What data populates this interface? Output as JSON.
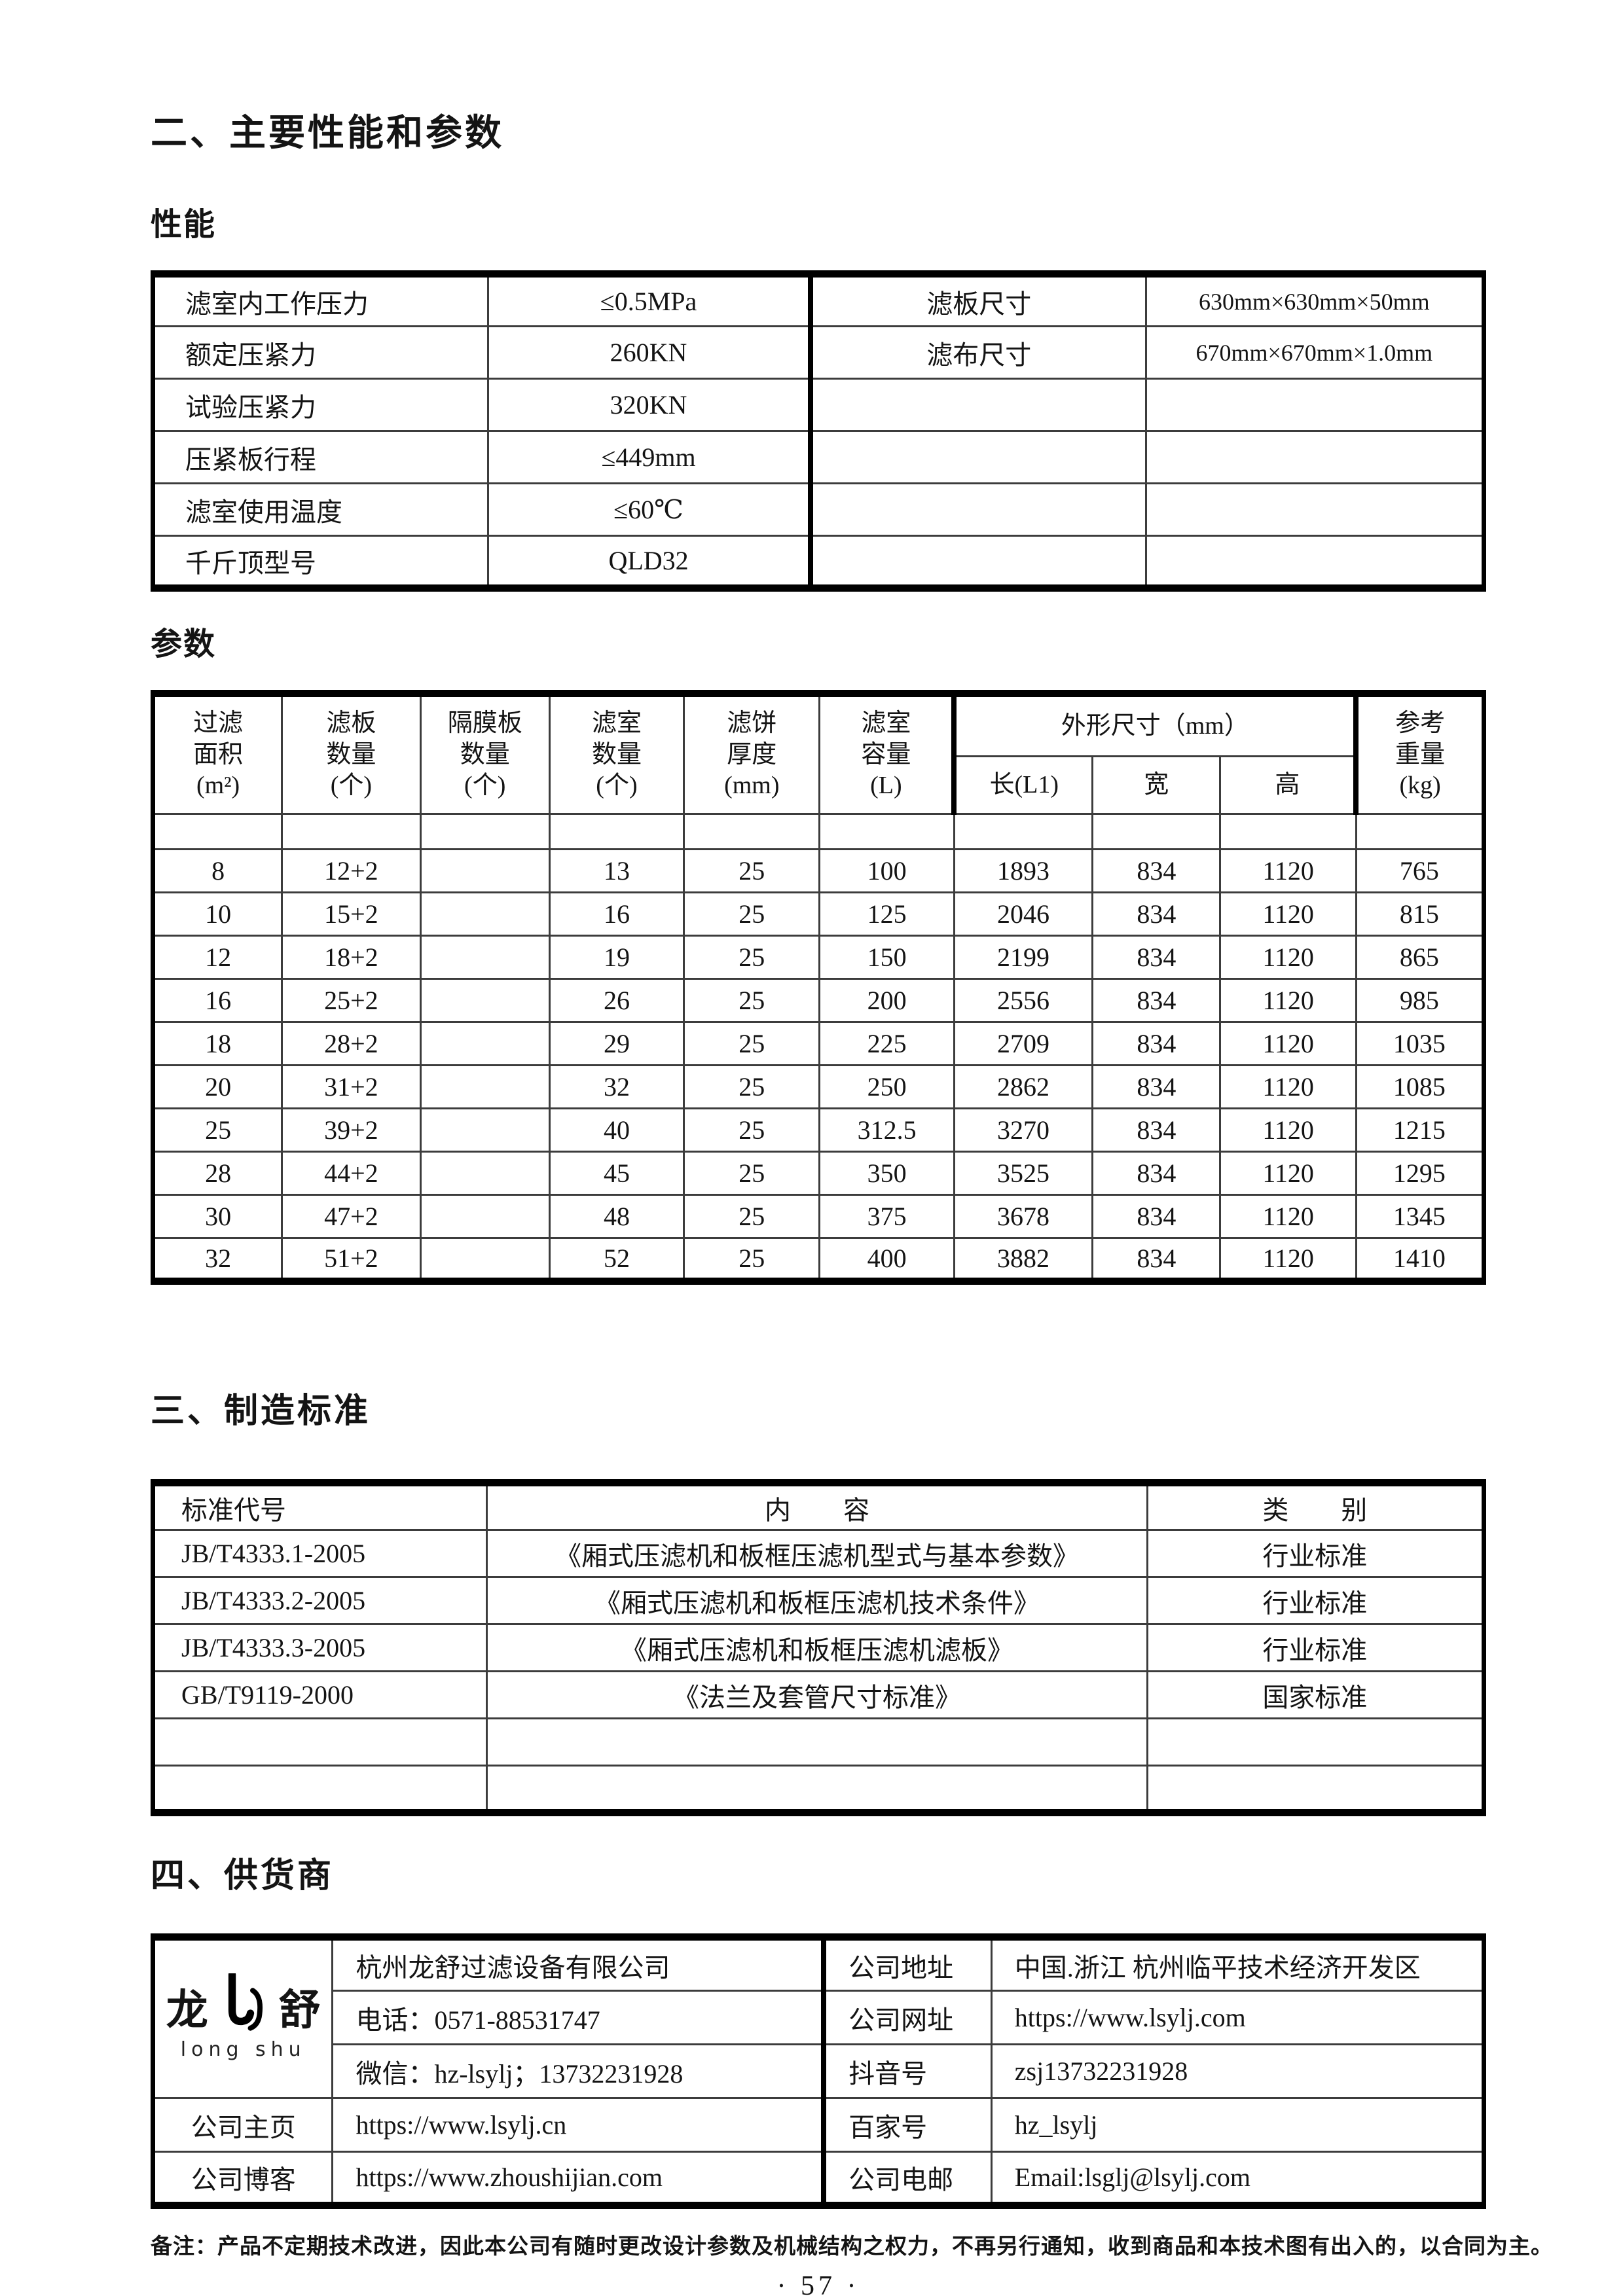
{
  "page": {
    "section2_title": "二、主要性能和参数",
    "performance_title": "性能",
    "params_title": "参数",
    "section3_title": "三、制造标准",
    "section4_title": "四、供货商",
    "footer_note": "备注：产品不定期技术改进，因此本公司有随时更改设计参数及机械结构之权力，不再另行通知，收到商品和本技术图有出入的，以合同为主。",
    "page_number": "· 57 ·"
  },
  "performance_table": {
    "rows": [
      [
        "滤室内工作压力",
        "≤0.5MPa",
        "滤板尺寸",
        "630mm×630mm×50mm"
      ],
      [
        "额定压紧力",
        "260KN",
        "滤布尺寸",
        "670mm×670mm×1.0mm"
      ],
      [
        "试验压紧力",
        "320KN",
        "",
        ""
      ],
      [
        "压紧板行程",
        "≤449mm",
        "",
        ""
      ],
      [
        "滤室使用温度",
        "≤60℃",
        "",
        ""
      ],
      [
        "千斤顶型号",
        "QLD32",
        "",
        ""
      ]
    ]
  },
  "parameter_table": {
    "headers": {
      "filter_area": "过滤\n面积\n(m²)",
      "plate_count": "滤板\n数量\n(个)",
      "diaphragm_count": "隔膜板\n数量\n(个)",
      "chamber_count": "滤室\n数量\n(个)",
      "cake_thickness": "滤饼\n厚度\n(mm)",
      "chamber_volume": "滤室\n容量\n(L)",
      "dimensions_group": "外形尺寸（mm）",
      "length": "长(L1)",
      "width": "宽",
      "height": "高",
      "ref_weight": "参考\n重量\n(kg)"
    },
    "rows": [
      [
        "8",
        "12+2",
        "",
        "13",
        "25",
        "100",
        "1893",
        "834",
        "1120",
        "765"
      ],
      [
        "10",
        "15+2",
        "",
        "16",
        "25",
        "125",
        "2046",
        "834",
        "1120",
        "815"
      ],
      [
        "12",
        "18+2",
        "",
        "19",
        "25",
        "150",
        "2199",
        "834",
        "1120",
        "865"
      ],
      [
        "16",
        "25+2",
        "",
        "26",
        "25",
        "200",
        "2556",
        "834",
        "1120",
        "985"
      ],
      [
        "18",
        "28+2",
        "",
        "29",
        "25",
        "225",
        "2709",
        "834",
        "1120",
        "1035"
      ],
      [
        "20",
        "31+2",
        "",
        "32",
        "25",
        "250",
        "2862",
        "834",
        "1120",
        "1085"
      ],
      [
        "25",
        "39+2",
        "",
        "40",
        "25",
        "312.5",
        "3270",
        "834",
        "1120",
        "1215"
      ],
      [
        "28",
        "44+2",
        "",
        "45",
        "25",
        "350",
        "3525",
        "834",
        "1120",
        "1295"
      ],
      [
        "30",
        "47+2",
        "",
        "48",
        "25",
        "375",
        "3678",
        "834",
        "1120",
        "1345"
      ],
      [
        "32",
        "51+2",
        "",
        "52",
        "25",
        "400",
        "3882",
        "834",
        "1120",
        "1410"
      ]
    ]
  },
  "standards_table": {
    "headers": [
      "标准代号",
      "内　　容",
      "类　　别"
    ],
    "rows": [
      [
        "JB/T4333.1-2005",
        "《厢式压滤机和板框压滤机型式与基本参数》",
        "行业标准"
      ],
      [
        "JB/T4333.2-2005",
        "《厢式压滤机和板框压滤机技术条件》",
        "行业标准"
      ],
      [
        "JB/T4333.3-2005",
        "《厢式压滤机和板框压滤机滤板》",
        "行业标准"
      ],
      [
        "GB/T9119-2000",
        "《法兰及套管尺寸标准》",
        "国家标准"
      ],
      [
        "",
        "",
        ""
      ],
      [
        "",
        "",
        ""
      ]
    ]
  },
  "supplier": {
    "logo": {
      "cn_left": "龙",
      "cn_right": "舒",
      "sub": "long shu",
      "mark_icon": "double-hook-logo-mark"
    },
    "company_name": "杭州龙舒过滤设备有限公司",
    "phone": "电话：0571-88531747",
    "wechat": "微信：hz-lsylj；13732231928",
    "labels": {
      "address": "公司地址",
      "website": "公司网址",
      "douyin": "抖音号",
      "homepage": "公司主页",
      "baijia": "百家号",
      "blog": "公司博客",
      "email": "公司电邮"
    },
    "values": {
      "address": "中国.浙江 杭州临平技术经济开发区",
      "website": "https://www.lsylj.com",
      "douyin": "zsj13732231928",
      "homepage": "https://www.lsylj.cn",
      "baijia": "hz_lsylj",
      "blog": "https://www.zhoushijian.com",
      "email": "Email:lsglj@lsylj.com"
    }
  }
}
